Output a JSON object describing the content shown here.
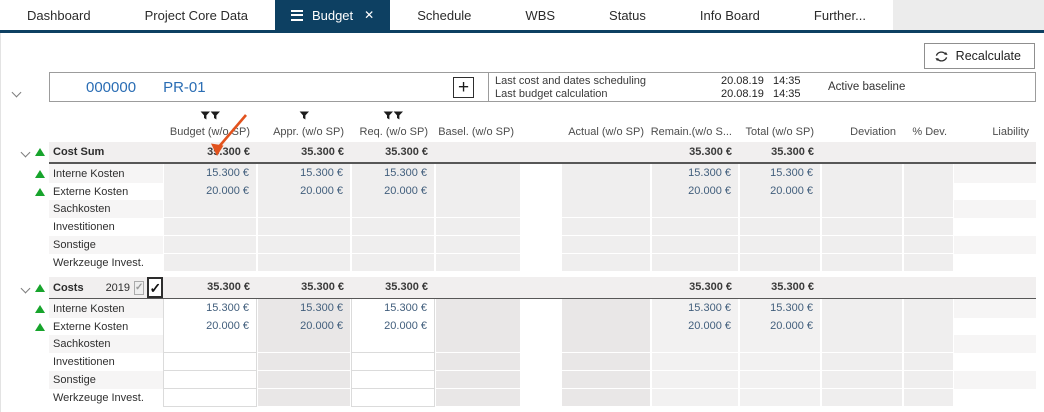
{
  "colors": {
    "accent_navy": "#0d4062",
    "link_blue": "#2a6db4",
    "trend_green": "#17a42c",
    "annotation_arrow": "#e2521d"
  },
  "icons": {
    "close_glyph": "✕",
    "plus_glyph": "+",
    "check_glyph": "✓"
  },
  "tabs": [
    {
      "label": "Dashboard",
      "active": false
    },
    {
      "label": "Project Core Data",
      "active": false
    },
    {
      "label": "Budget",
      "active": true,
      "closable": true
    },
    {
      "label": "Schedule",
      "active": false
    },
    {
      "label": "WBS",
      "active": false
    },
    {
      "label": "Status",
      "active": false
    },
    {
      "label": "Info Board",
      "active": false
    },
    {
      "label": "Further...",
      "active": false
    }
  ],
  "toolbar": {
    "recalculate_label": "Recalculate"
  },
  "project": {
    "id": "000000",
    "code": "PR-01",
    "info": [
      {
        "label": "Last cost and dates scheduling",
        "date": "20.08.19",
        "time": "14:35"
      },
      {
        "label": "Last budget calculation",
        "date": "20.08.19",
        "time": "14:35"
      }
    ],
    "baseline_label": "Active baseline"
  },
  "table": {
    "columns": [
      {
        "id": "budget",
        "label": "Budget (w/o SP)",
        "filters": 2
      },
      {
        "id": "appr",
        "label": "Appr. (w/o SP)",
        "filters": 1
      },
      {
        "id": "req",
        "label": "Req. (w/o SP)",
        "filters": 2
      },
      {
        "id": "basel",
        "label": "Basel. (w/o SP)",
        "filters": 0
      },
      {
        "id": "actual",
        "label": "Actual (w/o SP)",
        "filters": 0
      },
      {
        "id": "remain",
        "label": "Remain.(w/o S...",
        "filters": 0
      },
      {
        "id": "total",
        "label": "Total (w/o SP)",
        "filters": 0
      },
      {
        "id": "deviation",
        "label": "Deviation",
        "filters": 0
      },
      {
        "id": "pdev",
        "label": "% Dev.",
        "filters": 0
      },
      {
        "id": "liability",
        "label": "Liability",
        "filters": 0
      }
    ],
    "groups": [
      {
        "label": "Cost Sum",
        "year": null,
        "checkboxes": null,
        "values": {
          "budget": "35.300 €",
          "appr": "35.300 €",
          "req": "35.300 €",
          "remain": "35.300 €",
          "total": "35.300 €"
        },
        "rows": [
          {
            "label": "Interne Kosten",
            "trend": "up",
            "values": {
              "budget": "15.300 €",
              "appr": "15.300 €",
              "req": "15.300 €",
              "remain": "15.300 €",
              "total": "15.300 €"
            }
          },
          {
            "label": "Externe Kosten",
            "trend": "up",
            "values": {
              "budget": "20.000 €",
              "appr": "20.000 €",
              "req": "20.000 €",
              "remain": "20.000 €",
              "total": "20.000 €"
            }
          },
          {
            "label": "Sachkosten",
            "trend": null,
            "values": {}
          },
          {
            "label": "Investitionen",
            "trend": null,
            "values": {}
          },
          {
            "label": "Sonstige",
            "trend": null,
            "values": {}
          },
          {
            "label": "Werkzeuge Invest.",
            "trend": null,
            "values": {}
          }
        ]
      },
      {
        "label": "Costs",
        "year": "2019",
        "checkboxes": {
          "disabled_checked": true,
          "active_checked": true
        },
        "editable_columns": [
          "budget",
          "req"
        ],
        "values": {
          "budget": "35.300 €",
          "appr": "35.300 €",
          "req": "35.300 €",
          "remain": "35.300 €",
          "total": "35.300 €"
        },
        "rows": [
          {
            "label": "Interne Kosten",
            "trend": "up",
            "values": {
              "budget": "15.300 €",
              "appr": "15.300 €",
              "req": "15.300 €",
              "remain": "15.300 €",
              "total": "15.300 €"
            }
          },
          {
            "label": "Externe Kosten",
            "trend": "up",
            "values": {
              "budget": "20.000 €",
              "appr": "20.000 €",
              "req": "20.000 €",
              "remain": "20.000 €",
              "total": "20.000 €"
            }
          },
          {
            "label": "Sachkosten",
            "trend": null,
            "values": {}
          },
          {
            "label": "Investitionen",
            "trend": null,
            "values": {}
          },
          {
            "label": "Sonstige",
            "trend": null,
            "values": {}
          },
          {
            "label": "Werkzeuge Invest.",
            "trend": null,
            "values": {}
          }
        ]
      }
    ]
  }
}
